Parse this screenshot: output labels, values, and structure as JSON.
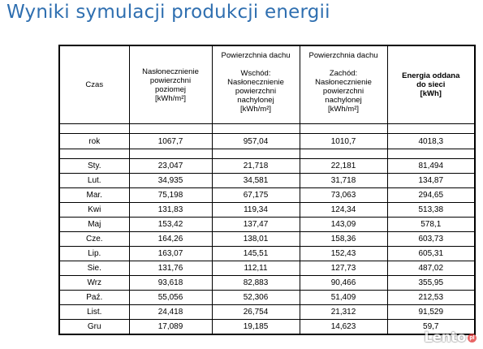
{
  "title": "Wyniki symulacji produkcji energii",
  "table": {
    "headers": {
      "czas": "Czas",
      "flat_line1": "Nasłonecznienie",
      "flat_line2": "powierzchni",
      "flat_line3": "poziomej",
      "flat_unit": "[kWh/m²]",
      "east_title": "Powierzchnia dachu",
      "east_dir": "Wschód:",
      "east_line1": "Nasłonecznienie",
      "east_line2": "powierzchni",
      "east_line3": "nachylonej",
      "east_unit": "[kWh/m²]",
      "west_title": "Powierzchnia dachu",
      "west_dir": "Zachód:",
      "west_line1": "Nasłonecznienie",
      "west_line2": "powierzchni",
      "west_line3": "nachylonej",
      "west_unit": "[kWh/m²]",
      "energy_line1": "Energia oddana",
      "energy_line2": "do sieci",
      "energy_unit": "[kWh]"
    },
    "year": [
      "rok",
      "1067,7",
      "957,04",
      "1010,7",
      "4018,3"
    ],
    "months": [
      [
        "Sty.",
        "23,047",
        "21,718",
        "22,181",
        "81,494"
      ],
      [
        "Lut.",
        "34,935",
        "34,581",
        "31,718",
        "134,87"
      ],
      [
        "Mar.",
        "75,198",
        "67,175",
        "73,063",
        "294,65"
      ],
      [
        "Kwi",
        "131,83",
        "119,34",
        "124,34",
        "513,38"
      ],
      [
        "Maj",
        "153,42",
        "137,47",
        "143,09",
        "578,1"
      ],
      [
        "Cze.",
        "164,26",
        "138,01",
        "158,36",
        "603,73"
      ],
      [
        "Lip.",
        "163,07",
        "145,51",
        "152,43",
        "605,31"
      ],
      [
        "Sie.",
        "131,76",
        "112,11",
        "127,73",
        "487,02"
      ],
      [
        "Wrz",
        "93,618",
        "82,883",
        "90,466",
        "355,95"
      ],
      [
        "Paź.",
        "55,056",
        "52,306",
        "51,409",
        "212,53"
      ],
      [
        "List.",
        "24,418",
        "26,754",
        "21,312",
        "91,529"
      ],
      [
        "Gru",
        "17,089",
        "19,185",
        "14,623",
        "59,7"
      ]
    ]
  },
  "watermark": {
    "text": "Lento",
    "badge": "pl"
  }
}
